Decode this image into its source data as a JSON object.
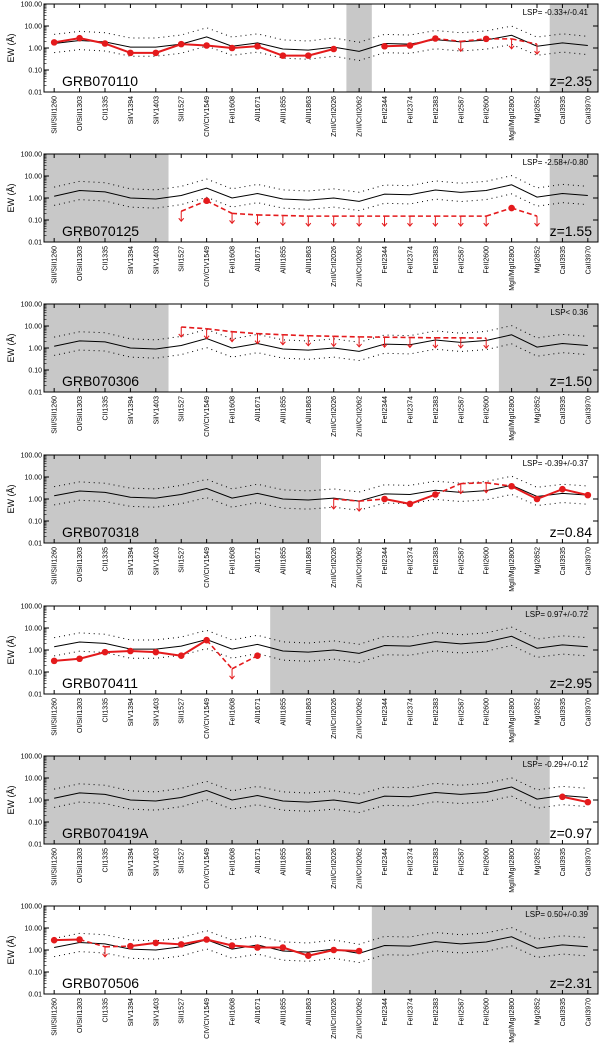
{
  "figure": {
    "ylabel": "EW (Å)",
    "y_ticks": [
      "100.00",
      "10.00",
      "1.00",
      "0.10",
      "0.01"
    ],
    "x_labels": [
      "SiII/SiII1260",
      "OI/SiII1303",
      "CII1335",
      "SiIV1394",
      "SiIV1403",
      "SiII1527",
      "CIV/CIV1549",
      "FeII1608",
      "AlII1671",
      "AlIII1855",
      "AlIII1863",
      "ZnII/CrII2026",
      "ZnII/CrII2062",
      "FeII2344",
      "FeII2374",
      "FeII2383",
      "FeII2587",
      "FeII2600",
      "MgII/MgII2800",
      "MgI2852",
      "CaII3935",
      "CaII3970"
    ]
  },
  "colors": {
    "data": "#e41a1c",
    "shade": "#c8c8c8",
    "reference": "#000000"
  },
  "chart_data": [
    {
      "type": "line",
      "name": "GRB070110",
      "redshift": "z=2.35",
      "lsp": "LSP= -0.33+/-0.41",
      "yscale": "log",
      "ylim": [
        0.01,
        100
      ],
      "shaded": [
        [
          12,
          12
        ],
        [
          20,
          21
        ]
      ],
      "reference": [
        1.6,
        2.2,
        1.9,
        1.1,
        1.1,
        1.5,
        3.2,
        1.2,
        1.7,
        0.9,
        0.8,
        1.1,
        0.7,
        1.6,
        1.5,
        2.4,
        1.9,
        2.3,
        3.8,
        1.2,
        1.7,
        1.3
      ],
      "observed": [
        1.8,
        2.8,
        1.6,
        0.6,
        0.6,
        1.5,
        1.3,
        1.0,
        1.2,
        0.45,
        0.45,
        0.9,
        null,
        1.2,
        1.3,
        2.7,
        null,
        2.6,
        null,
        null,
        null,
        null
      ],
      "upper_limits": [
        null,
        null,
        null,
        null,
        null,
        null,
        null,
        null,
        null,
        null,
        null,
        null,
        null,
        null,
        null,
        null,
        2.0,
        null,
        2.6,
        1.5,
        null,
        null
      ]
    },
    {
      "type": "line",
      "name": "GRB070125",
      "redshift": "z=1.55",
      "lsp": "LSP= -2.58+/-0.80",
      "yscale": "log",
      "ylim": [
        0.01,
        100
      ],
      "shaded": [
        [
          0,
          4
        ],
        [
          20,
          21
        ]
      ],
      "reference": [
        1.2,
        2.2,
        1.9,
        1.0,
        0.9,
        1.3,
        2.8,
        1.0,
        1.6,
        0.9,
        0.8,
        1.0,
        0.7,
        1.5,
        1.4,
        2.3,
        1.8,
        2.2,
        4.0,
        1.1,
        1.6,
        1.3
      ],
      "observed": [
        null,
        null,
        null,
        null,
        null,
        null,
        0.75,
        null,
        null,
        null,
        null,
        null,
        null,
        null,
        null,
        null,
        null,
        null,
        0.35,
        null,
        null,
        null
      ],
      "upper_limits": [
        null,
        null,
        null,
        null,
        null,
        0.25,
        null,
        0.2,
        0.17,
        0.16,
        0.15,
        0.15,
        0.15,
        0.15,
        0.15,
        0.15,
        0.15,
        0.15,
        null,
        0.15,
        null,
        null
      ]
    },
    {
      "type": "line",
      "name": "GRB070306",
      "redshift": "z=1.50",
      "lsp": "LSP< 0.36",
      "yscale": "log",
      "ylim": [
        0.01,
        100
      ],
      "shaded": [
        [
          0,
          4
        ],
        [
          18,
          21
        ]
      ],
      "reference": [
        1.2,
        2.1,
        1.9,
        1.0,
        0.9,
        1.3,
        2.7,
        1.0,
        1.6,
        0.9,
        0.8,
        1.0,
        0.7,
        1.5,
        1.4,
        2.3,
        1.8,
        2.2,
        4.0,
        1.1,
        1.6,
        1.3
      ],
      "observed": [
        null,
        null,
        null,
        null,
        null,
        null,
        null,
        null,
        null,
        null,
        null,
        null,
        null,
        null,
        null,
        null,
        null,
        null,
        null,
        null,
        null,
        null
      ],
      "upper_limits": [
        null,
        null,
        null,
        null,
        null,
        9.0,
        7.5,
        5.5,
        4.5,
        4.0,
        3.6,
        3.4,
        3.2,
        3.1,
        3.0,
        2.9,
        2.9,
        2.8,
        null,
        null,
        null,
        null
      ]
    },
    {
      "type": "line",
      "name": "GRB070318",
      "redshift": "z=0.84",
      "lsp": "LSP= -0.39+/-0.37",
      "yscale": "log",
      "ylim": [
        0.01,
        100
      ],
      "shaded": [
        [
          0,
          10
        ]
      ],
      "reference": [
        1.4,
        2.3,
        2.0,
        1.2,
        1.1,
        1.6,
        3.0,
        1.1,
        1.8,
        1.0,
        0.9,
        1.1,
        0.8,
        1.7,
        1.6,
        2.5,
        2.0,
        2.4,
        4.2,
        1.3,
        1.8,
        1.5
      ],
      "observed": [
        null,
        null,
        null,
        null,
        null,
        null,
        null,
        null,
        null,
        null,
        null,
        null,
        null,
        1.0,
        0.6,
        1.6,
        null,
        null,
        3.8,
        1.0,
        2.8,
        1.5
      ],
      "upper_limits": [
        null,
        null,
        null,
        null,
        null,
        null,
        null,
        null,
        null,
        null,
        null,
        1.0,
        0.8,
        null,
        null,
        null,
        5.0,
        5.5,
        null,
        null,
        null,
        null
      ]
    },
    {
      "type": "line",
      "name": "GRB070411",
      "redshift": "z=2.95",
      "lsp": "LSP= 0.97+/-0.72",
      "yscale": "log",
      "ylim": [
        0.01,
        100
      ],
      "shaded": [
        [
          9,
          21
        ]
      ],
      "reference": [
        1.4,
        2.3,
        2.0,
        1.1,
        1.1,
        1.5,
        3.0,
        1.1,
        1.8,
        0.9,
        0.8,
        1.0,
        0.7,
        1.6,
        1.5,
        2.4,
        1.9,
        2.3,
        4.2,
        1.2,
        1.7,
        1.4
      ],
      "observed": [
        0.32,
        0.4,
        0.8,
        0.9,
        0.8,
        0.55,
        2.8,
        null,
        0.55,
        null,
        null,
        null,
        null,
        null,
        null,
        null,
        null,
        null,
        null,
        null,
        null,
        null
      ],
      "upper_limits": [
        null,
        null,
        null,
        null,
        null,
        null,
        null,
        0.14,
        null,
        null,
        null,
        null,
        null,
        null,
        null,
        null,
        null,
        null,
        null,
        null,
        null,
        null
      ]
    },
    {
      "type": "line",
      "name": "GRB070419A",
      "redshift": "z=0.97",
      "lsp": "LSP= -0.29+/-0.12",
      "yscale": "log",
      "ylim": [
        0.01,
        100
      ],
      "shaded": [
        [
          0,
          19
        ]
      ],
      "reference": [
        1.2,
        2.1,
        1.8,
        1.0,
        0.9,
        1.3,
        2.7,
        1.0,
        1.6,
        0.9,
        0.8,
        1.0,
        0.7,
        1.5,
        1.4,
        2.2,
        1.8,
        2.2,
        3.9,
        1.1,
        1.6,
        1.3
      ],
      "observed": [
        null,
        null,
        null,
        null,
        null,
        null,
        null,
        null,
        null,
        null,
        null,
        null,
        null,
        null,
        null,
        null,
        null,
        null,
        null,
        null,
        1.4,
        0.8
      ],
      "upper_limits": [
        null,
        null,
        null,
        null,
        null,
        null,
        null,
        null,
        null,
        null,
        null,
        null,
        null,
        null,
        null,
        null,
        null,
        null,
        null,
        null,
        null,
        null
      ]
    },
    {
      "type": "line",
      "name": "GRB070506",
      "redshift": "z=2.31",
      "lsp": "LSP= 0.50+/-0.39",
      "yscale": "log",
      "ylim": [
        0.01,
        100
      ],
      "shaded": [
        [
          13,
          21
        ]
      ],
      "reference": [
        1.3,
        2.2,
        1.9,
        1.1,
        1.0,
        1.4,
        2.9,
        1.1,
        1.7,
        0.9,
        0.8,
        1.1,
        0.7,
        1.6,
        1.5,
        2.4,
        1.9,
        2.3,
        4.0,
        1.2,
        1.7,
        1.4
      ],
      "observed": [
        2.8,
        3.0,
        null,
        1.5,
        2.1,
        1.8,
        3.0,
        1.6,
        1.3,
        1.3,
        0.55,
        1.0,
        0.9,
        null,
        null,
        null,
        null,
        null,
        null,
        null,
        null,
        null
      ],
      "upper_limits": [
        null,
        null,
        1.4,
        null,
        null,
        null,
        null,
        null,
        null,
        null,
        null,
        null,
        null,
        null,
        null,
        null,
        null,
        null,
        null,
        null,
        null,
        null
      ]
    }
  ]
}
